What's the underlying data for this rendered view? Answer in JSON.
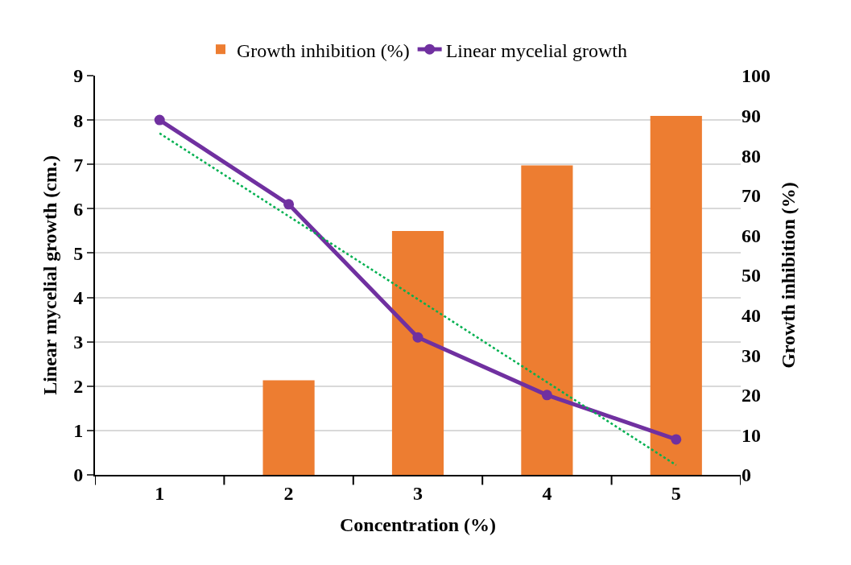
{
  "chart_data": {
    "type": "bar",
    "xlabel": "Concentration (%)",
    "ylabel": "Linear mycelial growth (cm.)",
    "y2label": "Growth inhibition (%)",
    "categories": [
      "1",
      "2",
      "3",
      "4",
      "5"
    ],
    "series": [
      {
        "name": "Growth inhibition (%)",
        "axis": "y2",
        "color": "#ed7d31",
        "values": [
          0,
          23.7,
          61.1,
          77.5,
          89.9
        ]
      },
      {
        "name": "Linear mycelial growth",
        "type": "line",
        "color": "#7030a0",
        "marker": "circle",
        "line_style": "solid",
        "values": [
          8.0,
          6.1,
          3.1,
          1.8,
          0.8
        ]
      },
      {
        "type": "line",
        "color": "#00b050",
        "marker": "none",
        "line_style": "dotted",
        "values": [
          7.7,
          5.83,
          3.96,
          2.09,
          0.22
        ]
      }
    ],
    "ylim": [
      0,
      9
    ],
    "yticks": [
      0,
      1,
      2,
      3,
      4,
      5,
      6,
      7,
      8,
      9
    ],
    "y2lim": [
      0,
      100
    ],
    "y2ticks": [
      0,
      10,
      20,
      30,
      40,
      50,
      60,
      70,
      80,
      90,
      100
    ],
    "grid": "y",
    "legend": "top"
  }
}
